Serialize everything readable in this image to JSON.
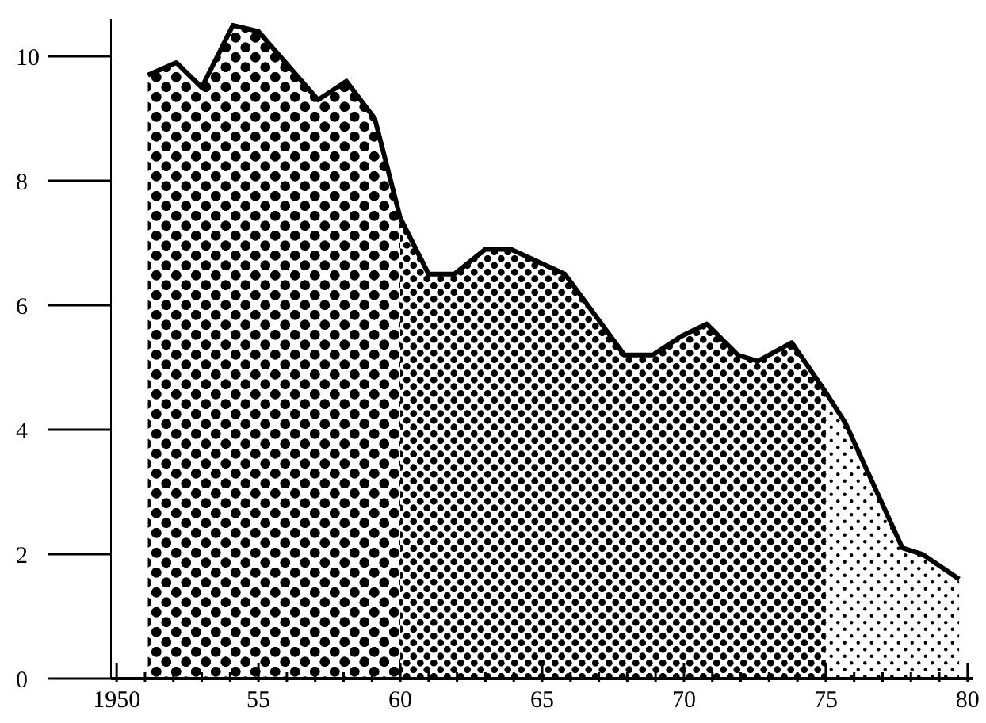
{
  "chart_data": {
    "type": "area",
    "xlim": [
      1949.8,
      1980.2
    ],
    "ylim": [
      0,
      10.6
    ],
    "xticks": [
      {
        "value": 1950,
        "label": "1950"
      },
      {
        "value": 1951,
        "label": null
      },
      {
        "value": 1952,
        "label": null
      },
      {
        "value": 1953,
        "label": null
      },
      {
        "value": 1954,
        "label": null
      },
      {
        "value": 1955,
        "label": "55"
      },
      {
        "value": 1956,
        "label": null
      },
      {
        "value": 1957,
        "label": null
      },
      {
        "value": 1958,
        "label": null
      },
      {
        "value": 1959,
        "label": null
      },
      {
        "value": 1960,
        "label": "60"
      },
      {
        "value": 1961,
        "label": null
      },
      {
        "value": 1962,
        "label": null
      },
      {
        "value": 1963,
        "label": null
      },
      {
        "value": 1964,
        "label": null
      },
      {
        "value": 1965,
        "label": "65"
      },
      {
        "value": 1966,
        "label": null
      },
      {
        "value": 1967,
        "label": null
      },
      {
        "value": 1968,
        "label": null
      },
      {
        "value": 1969,
        "label": null
      },
      {
        "value": 1970,
        "label": "70"
      },
      {
        "value": 1971,
        "label": null
      },
      {
        "value": 1972,
        "label": null
      },
      {
        "value": 1973,
        "label": null
      },
      {
        "value": 1974,
        "label": null
      },
      {
        "value": 1975,
        "label": "75"
      },
      {
        "value": 1976,
        "label": null
      },
      {
        "value": 1977,
        "label": null
      },
      {
        "value": 1978,
        "label": null
      },
      {
        "value": 1979,
        "label": null
      },
      {
        "value": 1980,
        "label": "80"
      }
    ],
    "yticks": [
      0,
      2,
      4,
      6,
      8,
      10
    ],
    "series": [
      {
        "color": "#000000",
        "x": [
          1951.1,
          1952.1,
          1953,
          1954.1,
          1955,
          1957.1,
          1958.1,
          1959.1,
          1960
        ],
        "values": [
          9.7,
          9.9,
          9.5,
          10.5,
          10.4,
          9.3,
          9.6,
          9.0,
          7.4
        ]
      },
      {
        "color": "#000000",
        "x": [
          1960,
          1961,
          1961.9,
          1963,
          1963.9,
          1965.8,
          1967.9,
          1968.9,
          1969.9,
          1970.8,
          1971.9,
          1972.6,
          1973.8,
          1975
        ],
        "values": [
          7.4,
          6.5,
          6.5,
          6.9,
          6.9,
          6.5,
          5.2,
          5.2,
          5.5,
          5.7,
          5.2,
          5.1,
          5.4,
          4.6
        ]
      },
      {
        "color": "#000000",
        "x": [
          1975,
          1975.7,
          1977.7,
          1978.4,
          1979.7
        ],
        "values": [
          4.6,
          4.1,
          2.1,
          2.0,
          1.6
        ]
      }
    ],
    "grid": false
  }
}
